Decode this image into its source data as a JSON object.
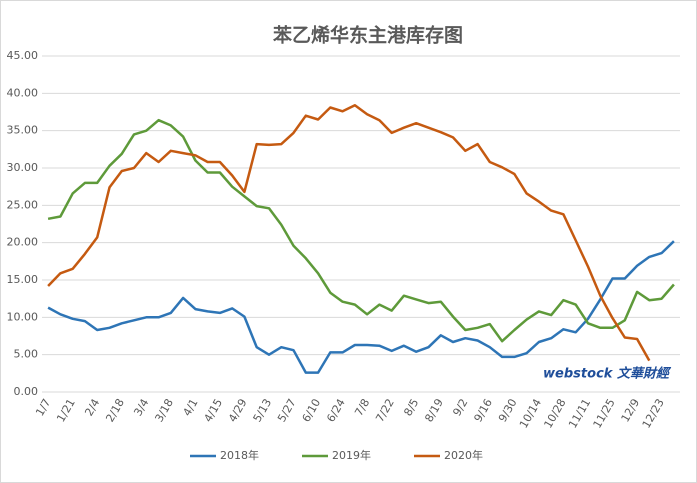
{
  "chart_data": {
    "type": "line",
    "title": "苯乙烯华东主港库存图",
    "watermark": "webstock 文華財經",
    "categories": [
      "1/7",
      null,
      "1/21",
      null,
      "2/4",
      null,
      "2/18",
      null,
      "3/4",
      null,
      "3/18",
      null,
      "4/1",
      null,
      "4/15",
      null,
      "4/29",
      null,
      "5/13",
      null,
      "5/27",
      null,
      "6/10",
      null,
      "6/24",
      null,
      "7/8",
      null,
      "7/22",
      null,
      "8/5",
      null,
      "8/19",
      null,
      "9/2",
      null,
      "9/16",
      null,
      "9/30",
      null,
      "10/14",
      null,
      "10/28",
      null,
      "11/11",
      null,
      "11/25",
      null,
      "12/9",
      null,
      "12/23",
      null
    ],
    "series": [
      {
        "name": "2018年",
        "color": "#2e75b6",
        "values": [
          11.3,
          10.4,
          9.8,
          9.5,
          8.3,
          8.6,
          9.2,
          9.6,
          10.0,
          10.0,
          10.6,
          12.6,
          11.1,
          10.8,
          10.6,
          11.2,
          10.1,
          6.0,
          5.0,
          6.0,
          5.6,
          2.6,
          2.6,
          5.3,
          5.3,
          6.3,
          6.3,
          6.2,
          5.5,
          6.2,
          5.4,
          6.0,
          7.6,
          6.7,
          7.2,
          6.9,
          6.0,
          4.7,
          4.7,
          5.2,
          6.7,
          7.2,
          8.4,
          8.0,
          9.8,
          12.4,
          15.2,
          15.2,
          16.9,
          18.1,
          18.6,
          20.2
        ]
      },
      {
        "name": "2019年",
        "color": "#5e9a3a",
        "values": [
          23.2,
          23.5,
          26.6,
          28.0,
          28.0,
          30.3,
          31.9,
          34.5,
          35.0,
          36.4,
          35.7,
          34.2,
          31.0,
          29.4,
          29.4,
          27.5,
          26.2,
          24.9,
          24.6,
          22.4,
          19.6,
          17.9,
          15.9,
          13.3,
          12.1,
          11.7,
          10.4,
          11.7,
          10.9,
          12.9,
          12.4,
          11.9,
          12.1,
          10.1,
          8.3,
          8.6,
          9.1,
          6.8,
          8.3,
          9.7,
          10.8,
          10.3,
          12.3,
          11.7,
          9.2,
          8.6,
          8.6,
          9.6,
          13.4,
          12.3,
          12.5,
          14.4
        ]
      },
      {
        "name": "2020年",
        "color": "#c55a11",
        "values": [
          14.2,
          15.9,
          16.5,
          18.5,
          20.7,
          27.4,
          29.6,
          30.0,
          32.0,
          30.8,
          32.3,
          32.0,
          31.7,
          30.8,
          30.8,
          29.0,
          26.8,
          33.2,
          33.1,
          33.2,
          34.7,
          37.0,
          36.5,
          38.1,
          37.6,
          38.4,
          37.2,
          36.4,
          34.7,
          35.4,
          36.0,
          35.4,
          34.8,
          34.1,
          32.3,
          33.2,
          30.8,
          30.1,
          29.2,
          26.6,
          25.5,
          24.3,
          23.8,
          20.3,
          16.8,
          12.9,
          9.9,
          7.3,
          7.1,
          4.2,
          null,
          null
        ]
      }
    ],
    "ylim": [
      0,
      45
    ],
    "yticks": [
      {
        "value": 0,
        "label": "0.00"
      },
      {
        "value": 5,
        "label": "5.00"
      },
      {
        "value": 10,
        "label": "10.00"
      },
      {
        "value": 15,
        "label": "15.00"
      },
      {
        "value": 20,
        "label": "20.00"
      },
      {
        "value": 25,
        "label": "25.00"
      },
      {
        "value": 30,
        "label": "30.00"
      },
      {
        "value": 35,
        "label": "35.00"
      },
      {
        "value": 40,
        "label": "40.00"
      },
      {
        "value": 45,
        "label": "45.00"
      }
    ],
    "grid": true,
    "legend": "bottom"
  }
}
